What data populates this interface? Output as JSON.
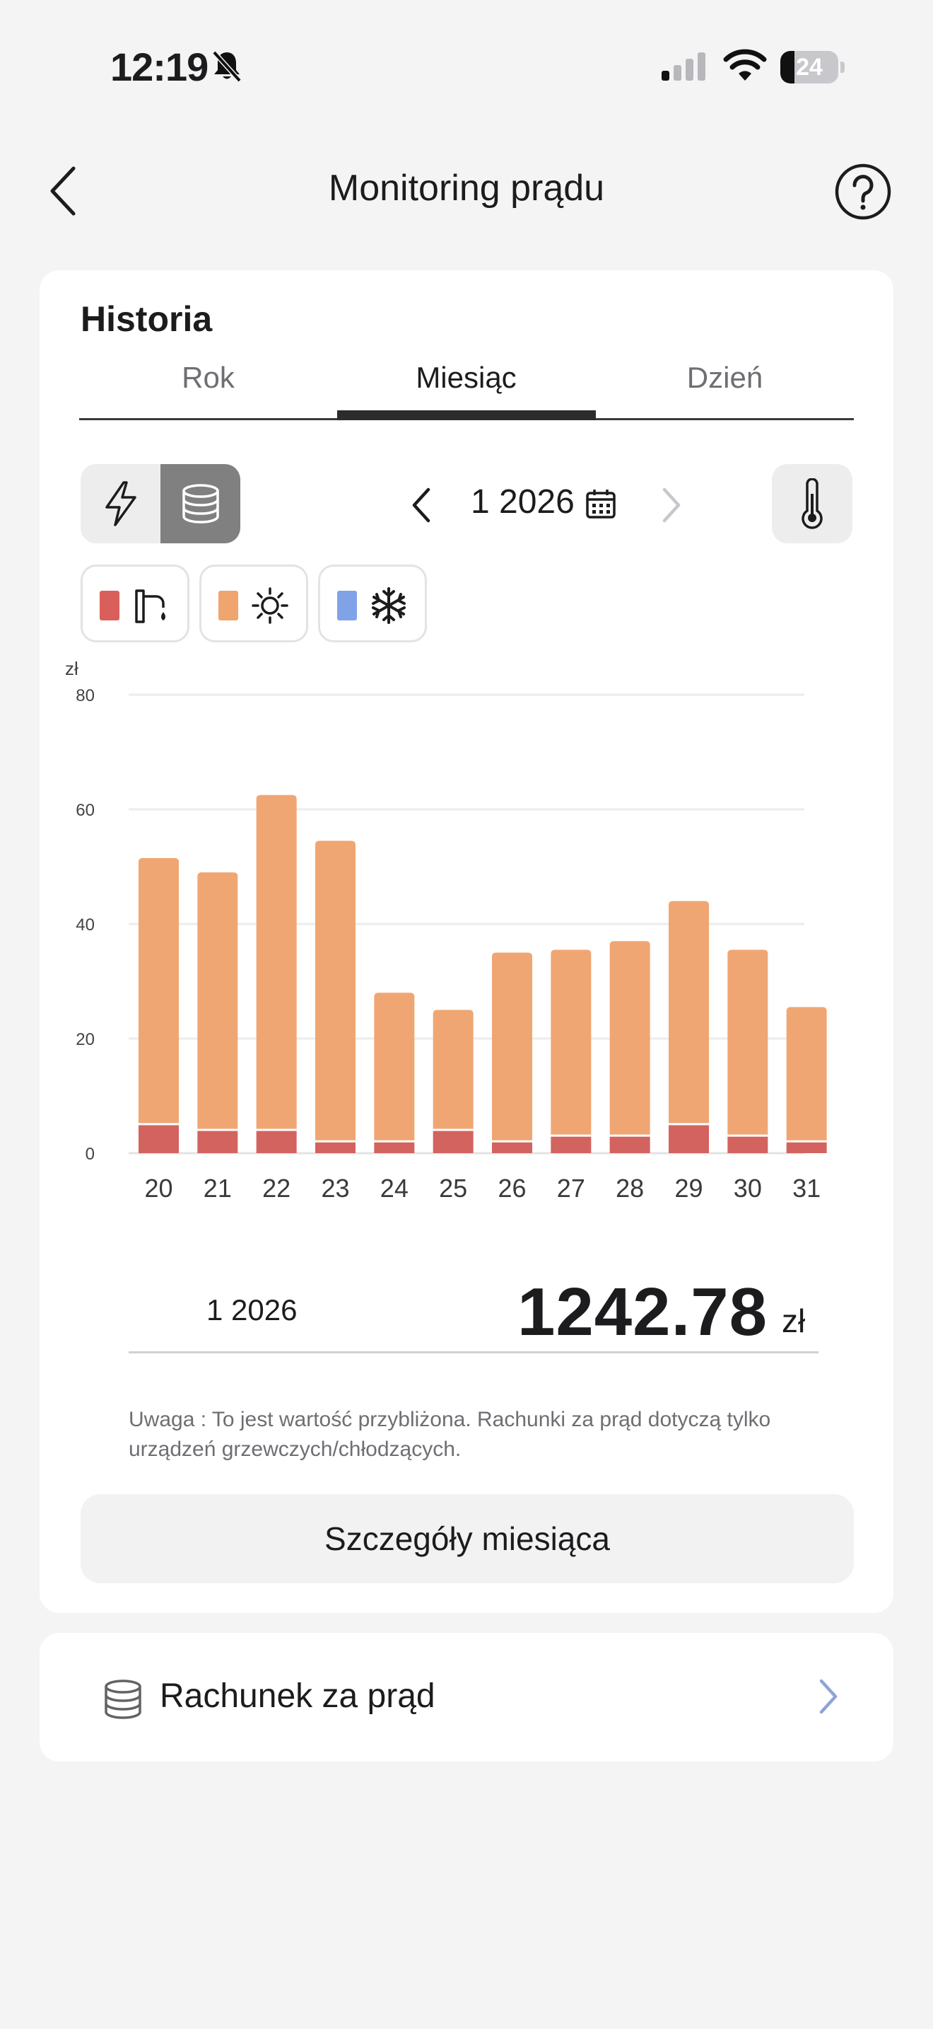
{
  "status_bar": {
    "time": "12:19",
    "battery": "24",
    "battery_level": 0.24
  },
  "header": {
    "title": "Monitoring prądu"
  },
  "history": {
    "title": "Historia",
    "tabs": [
      {
        "label": "Rok",
        "active": false
      },
      {
        "label": "Miesiąc",
        "active": true
      },
      {
        "label": "Dzień",
        "active": false
      }
    ],
    "period": "1 2026",
    "legend": [
      {
        "name": "heating-water",
        "icon": "tap-icon",
        "color": "#d9605a"
      },
      {
        "name": "heating",
        "icon": "sun-icon",
        "color": "#f0a46e"
      },
      {
        "name": "cooling",
        "icon": "snowflake-icon",
        "color": "#7fa3e6"
      }
    ],
    "summary": {
      "period": "1 2026",
      "value": "1242.78",
      "unit": "zł"
    },
    "note": "Uwaga : To jest wartość przybliżona. Rachunki za prąd dotyczą tylko urządzeń grzewczych/chłodzących.",
    "details_button": "Szczegóły miesiąca"
  },
  "bill": {
    "label": "Rachunek za prąd"
  },
  "colors": {
    "dark_segment": "#d3635f",
    "light_segment": "#f0a673",
    "toggle_active": "#808080"
  },
  "chart_data": {
    "type": "bar",
    "stacked": true,
    "unit": "zł",
    "categories": [
      "20",
      "21",
      "22",
      "23",
      "24",
      "25",
      "26",
      "27",
      "28",
      "29",
      "30",
      "31"
    ],
    "series": [
      {
        "values": [
          5,
          4,
          4,
          2,
          2,
          4,
          2,
          3,
          3,
          5,
          3,
          2
        ],
        "color": "#d3635f"
      },
      {
        "values": [
          46.5,
          45,
          58.5,
          52.5,
          26,
          21,
          33,
          32.5,
          34,
          39,
          32.5,
          23.5
        ],
        "color": "#f0a673"
      }
    ],
    "ylim": [
      0,
      80
    ],
    "yticks": [
      0,
      20,
      40,
      60,
      80
    ],
    "grid": true
  }
}
